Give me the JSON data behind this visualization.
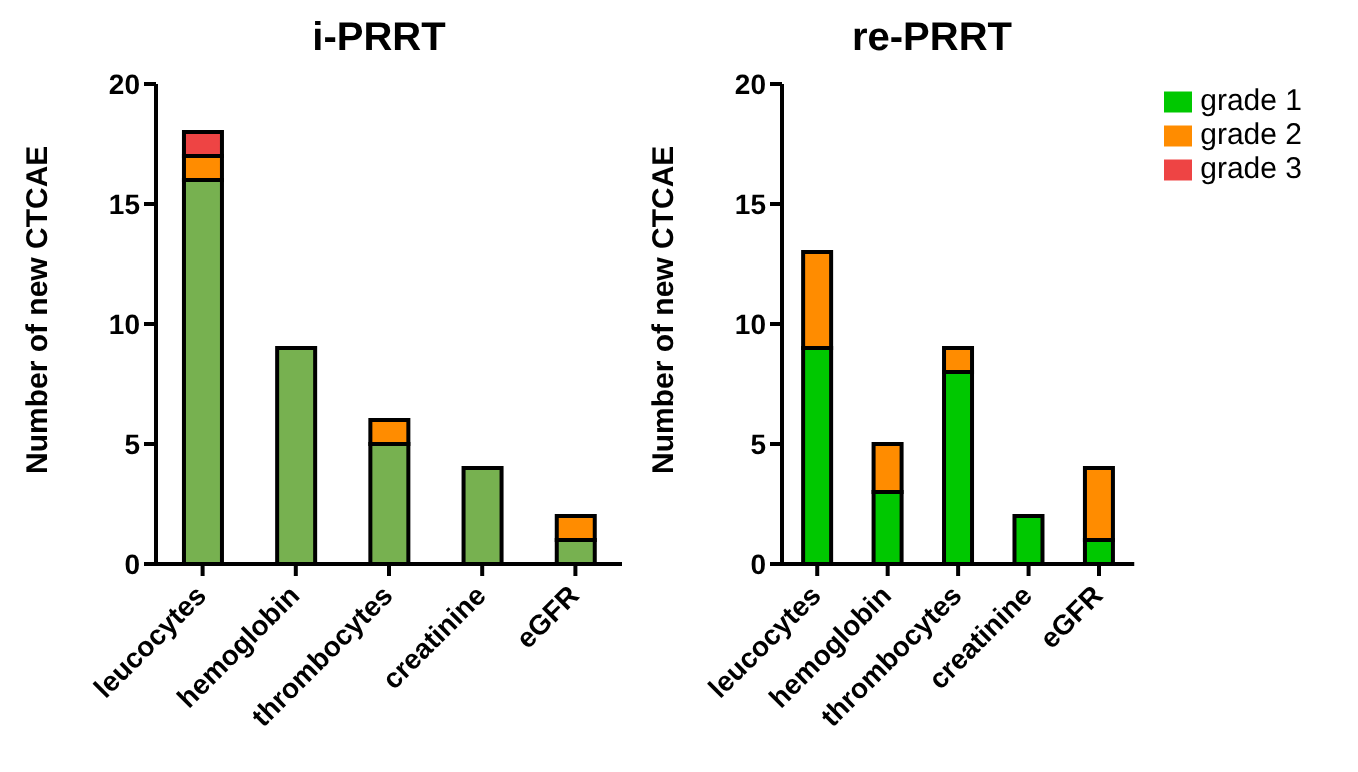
{
  "chart_data": [
    {
      "type": "bar",
      "title": "i-PRRT",
      "ylabel": "Number of new CTCAE",
      "categories": [
        "leucocytes",
        "hemoglobin",
        "thrombocytes",
        "creatinine",
        "eGFR"
      ],
      "stacked": true,
      "ylim": [
        0,
        20
      ],
      "yticks": [
        0,
        5,
        10,
        15,
        20
      ],
      "grid": false,
      "legend": false,
      "series": [
        {
          "color": "#77b150",
          "values": [
            16,
            9,
            5,
            4,
            1
          ]
        },
        {
          "color": "#ff8c00",
          "values": [
            1,
            0,
            1,
            0,
            1
          ]
        },
        {
          "color": "#ee4444",
          "values": [
            1,
            0,
            0,
            0,
            0
          ]
        }
      ]
    },
    {
      "type": "bar",
      "title": "re-PRRT",
      "ylabel": "Number of new CTCAE",
      "categories": [
        "leucocytes",
        "hemoglobin",
        "thrombocytes",
        "creatinine",
        "eGFR"
      ],
      "stacked": true,
      "ylim": [
        0,
        20
      ],
      "yticks": [
        0,
        5,
        10,
        15,
        20
      ],
      "grid": false,
      "legend": "top right",
      "series": [
        {
          "name": "grade 1",
          "color": "#00c800",
          "values": [
            9,
            3,
            8,
            2,
            1
          ]
        },
        {
          "name": "grade 2",
          "color": "#ff8c00",
          "values": [
            4,
            2,
            1,
            0,
            3
          ]
        },
        {
          "name": "grade 3",
          "color": "#ee4444",
          "values": [
            0,
            0,
            0,
            0,
            0
          ]
        }
      ]
    }
  ]
}
